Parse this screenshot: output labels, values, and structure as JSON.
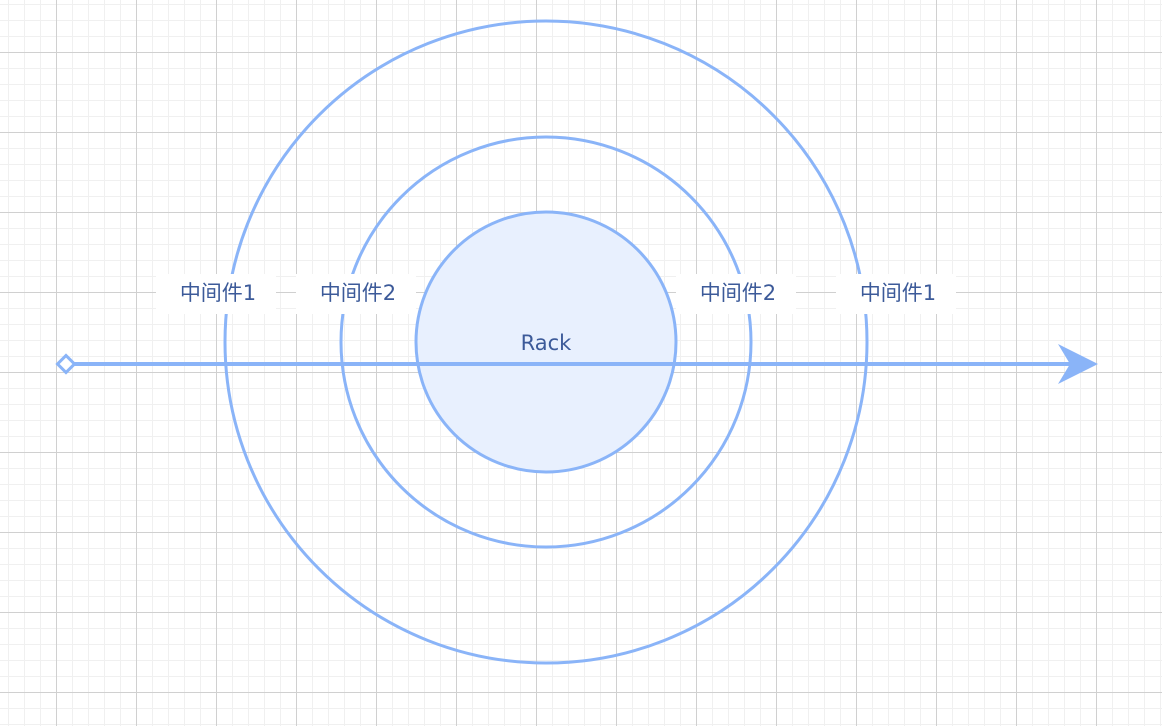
{
  "diagram": {
    "center_label": "Rack",
    "left_outer_label": "中间件1",
    "left_inner_label": "中间件2",
    "right_inner_label": "中间件2",
    "right_outer_label": "中间件1"
  },
  "colors": {
    "stroke": "#8AB4F8",
    "core_fill": "#E8F0FE",
    "text": "#3C5A99"
  }
}
